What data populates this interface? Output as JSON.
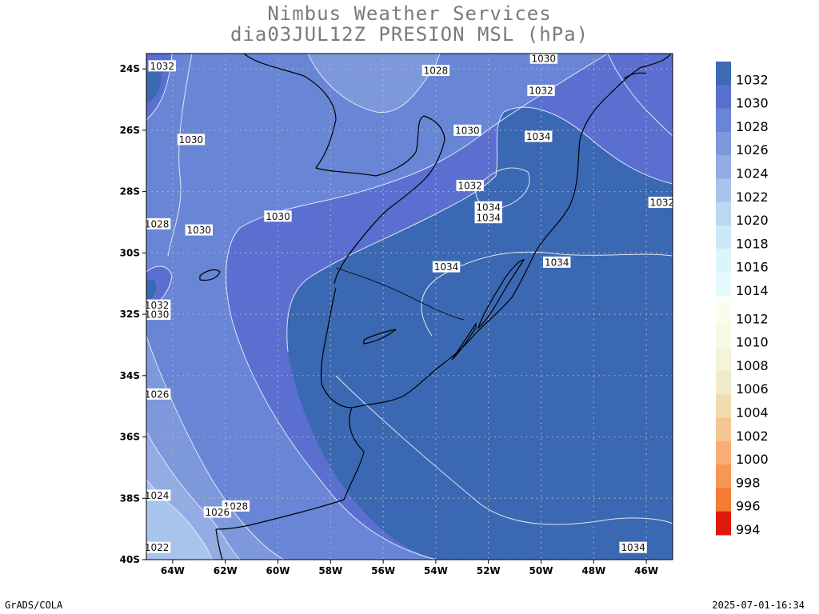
{
  "header": {
    "title": "Nimbus Weather Services",
    "subtitle": "dia03JUL12Z PRESION MSL (hPa)"
  },
  "footer": {
    "left": "GrADS/COLA",
    "right": "2025-07-01-16:34"
  },
  "map": {
    "lat_range": [
      -40,
      -23.5
    ],
    "lon_range": [
      -65,
      -45
    ],
    "lat_ticks": [
      {
        "value": -24,
        "label": "24S"
      },
      {
        "value": -26,
        "label": "26S"
      },
      {
        "value": -28,
        "label": "28S"
      },
      {
        "value": -30,
        "label": "30S"
      },
      {
        "value": -32,
        "label": "32S"
      },
      {
        "value": -34,
        "label": "34S"
      },
      {
        "value": -36,
        "label": "36S"
      },
      {
        "value": -38,
        "label": "38S"
      },
      {
        "value": -40,
        "label": "40S"
      }
    ],
    "lon_ticks": [
      {
        "value": -64,
        "label": "64W"
      },
      {
        "value": -62,
        "label": "62W"
      },
      {
        "value": -60,
        "label": "60W"
      },
      {
        "value": -58,
        "label": "58W"
      },
      {
        "value": -56,
        "label": "56W"
      },
      {
        "value": -54,
        "label": "54W"
      },
      {
        "value": -52,
        "label": "52W"
      },
      {
        "value": -50,
        "label": "50W"
      },
      {
        "value": -48,
        "label": "48W"
      },
      {
        "value": -46,
        "label": "46W"
      }
    ],
    "grid": true,
    "contour_labels": [
      {
        "text": "1032",
        "lon": -64.4,
        "lat": -23.9
      },
      {
        "text": "1030",
        "lon": -63.3,
        "lat": -26.3
      },
      {
        "text": "1028",
        "lon": -54.0,
        "lat": -24.05
      },
      {
        "text": "1030",
        "lon": -49.9,
        "lat": -23.65
      },
      {
        "text": "1032",
        "lon": -50.0,
        "lat": -24.7
      },
      {
        "text": "1030",
        "lon": -52.8,
        "lat": -26.0
      },
      {
        "text": "1034",
        "lon": -50.1,
        "lat": -26.2
      },
      {
        "text": "1032",
        "lon": -52.7,
        "lat": -27.8
      },
      {
        "text": "1032",
        "lon": -45.4,
        "lat": -28.35
      },
      {
        "text": "1030",
        "lon": -60.0,
        "lat": -28.8
      },
      {
        "text": "1028",
        "lon": -64.6,
        "lat": -29.05
      },
      {
        "text": "1030",
        "lon": -63.0,
        "lat": -29.25
      },
      {
        "text": "1034",
        "lon": -52.0,
        "lat": -28.5
      },
      {
        "text": "1034",
        "lon": -52.0,
        "lat": -28.85
      },
      {
        "text": "1034",
        "lon": -49.4,
        "lat": -30.3
      },
      {
        "text": "1034",
        "lon": -53.6,
        "lat": -30.45
      },
      {
        "text": "1032",
        "lon": -64.6,
        "lat": -31.7
      },
      {
        "text": "1030",
        "lon": -64.6,
        "lat": -32.0
      },
      {
        "text": "1026",
        "lon": -64.6,
        "lat": -34.6
      },
      {
        "text": "1024",
        "lon": -64.6,
        "lat": -37.9
      },
      {
        "text": "1028",
        "lon": -61.6,
        "lat": -38.25
      },
      {
        "text": "1026",
        "lon": -62.3,
        "lat": -38.45
      },
      {
        "text": "1022",
        "lon": -64.6,
        "lat": -39.6
      },
      {
        "text": "1034",
        "lon": -46.5,
        "lat": -39.6
      }
    ]
  },
  "legend": {
    "levels": [
      {
        "label": "1032",
        "color": "#3e6ab4"
      },
      {
        "label": "1030",
        "color": "#5a6fd0"
      },
      {
        "label": "1028",
        "color": "#6985d6"
      },
      {
        "label": "1026",
        "color": "#7e98dc"
      },
      {
        "label": "1024",
        "color": "#93ade4"
      },
      {
        "label": "1022",
        "color": "#a8c4ec"
      },
      {
        "label": "1020",
        "color": "#bad8f1"
      },
      {
        "label": "1018",
        "color": "#cde9f6"
      },
      {
        "label": "1016",
        "color": "#dcf5fa"
      },
      {
        "label": "1014",
        "color": "#e6fbfd"
      },
      {
        "label": "1012",
        "color": "#fafcf0"
      },
      {
        "label": "1010",
        "color": "#f6f9e3"
      },
      {
        "label": "1008",
        "color": "#f3f4d8"
      },
      {
        "label": "1006",
        "color": "#f0eccb"
      },
      {
        "label": "1004",
        "color": "#f1dcaf"
      },
      {
        "label": "1002",
        "color": "#f5c592"
      },
      {
        "label": "1000",
        "color": "#f8ae74"
      },
      {
        "label": "998",
        "color": "#f89656"
      },
      {
        "label": "996",
        "color": "#f47a35"
      },
      {
        "label": "994",
        "color": "#e01a0a"
      }
    ]
  },
  "colors": {
    "band_1034": "#3b68b2",
    "band_1032": "#5a6fd0",
    "band_1030": "#6985d6",
    "band_1028": "#7e98dc",
    "band_1026": "#93ade4",
    "band_1024": "#a8c4ec"
  }
}
